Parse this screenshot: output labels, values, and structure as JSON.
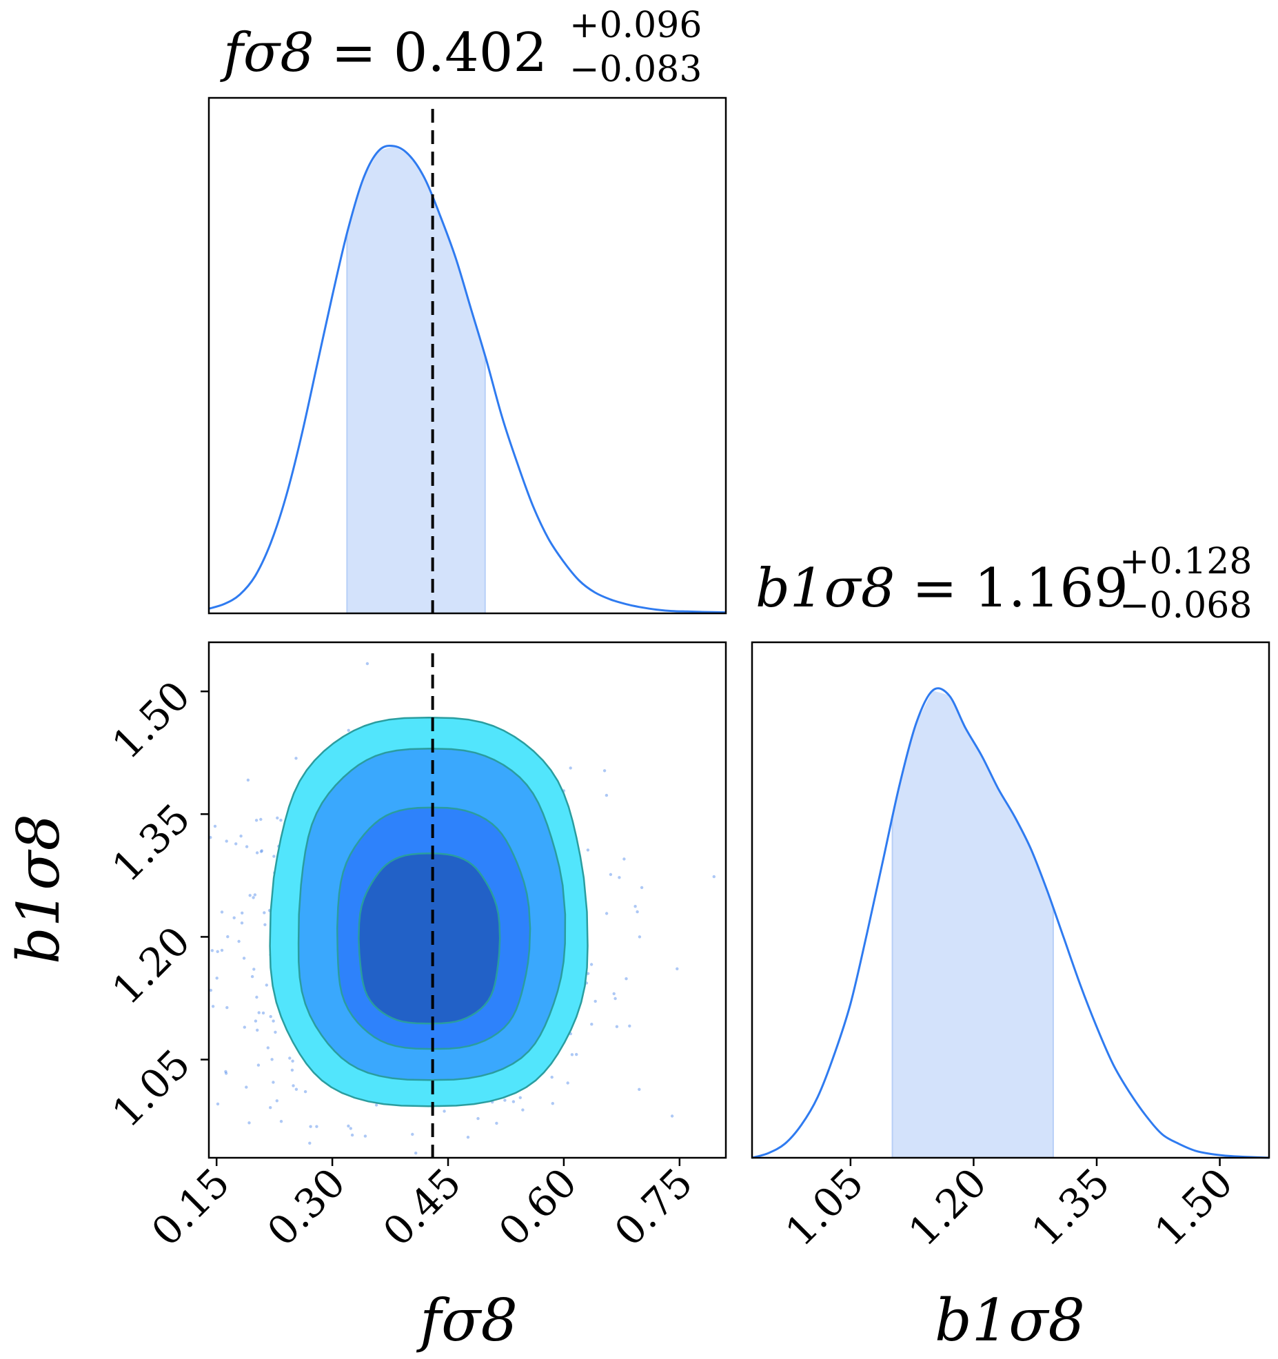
{
  "chart_data": {
    "type": "corner",
    "colors": {
      "line": "#2f7bf0",
      "band": "#d3e2fb",
      "band_edge": "#b7cff7",
      "truth": "#000000",
      "scatter": "#4a86e8",
      "contour_levels": [
        "#52e5fc",
        "#3aa8fd",
        "#2e82fb",
        "#2261c7"
      ],
      "contour_edge": "#2a9d9f"
    },
    "parameters": [
      {
        "key": "fsigma8",
        "label": "fσ8",
        "title_name": "fσ8",
        "title_value": "0.402",
        "title_plus": "+0.096",
        "title_minus": "−0.083",
        "median": 0.402,
        "err_plus": 0.096,
        "err_minus": 0.083,
        "truth": 0.43,
        "range": [
          0.14,
          0.81
        ],
        "ticks": [
          "0.15",
          "0.30",
          "0.45",
          "0.60",
          "0.75"
        ]
      },
      {
        "key": "b1sigma8",
        "label": "b1σ8",
        "title_name": "b1σ8",
        "title_value": "1.169",
        "title_plus": "+0.128",
        "title_minus": "−0.068",
        "median": 1.169,
        "err_plus": 0.128,
        "err_minus": 0.068,
        "range": [
          0.93,
          1.56
        ],
        "ticks": [
          "1.05",
          "1.20",
          "1.35",
          "1.50"
        ]
      }
    ],
    "marginals": [
      {
        "parameter": "fsigma8",
        "x": [
          0.14,
          0.16,
          0.18,
          0.2,
          0.22,
          0.24,
          0.26,
          0.28,
          0.3,
          0.32,
          0.34,
          0.36,
          0.38,
          0.4,
          0.42,
          0.44,
          0.46,
          0.48,
          0.5,
          0.52,
          0.54,
          0.56,
          0.58,
          0.6,
          0.62,
          0.64,
          0.66,
          0.68,
          0.7,
          0.72,
          0.74,
          0.76,
          0.78,
          0.81
        ],
        "density": [
          0.01,
          0.02,
          0.04,
          0.08,
          0.15,
          0.25,
          0.38,
          0.53,
          0.68,
          0.82,
          0.93,
          0.99,
          1.0,
          0.98,
          0.93,
          0.85,
          0.76,
          0.65,
          0.54,
          0.42,
          0.32,
          0.23,
          0.16,
          0.11,
          0.07,
          0.045,
          0.03,
          0.02,
          0.013,
          0.008,
          0.005,
          0.004,
          0.003,
          0.002
        ],
        "band": [
          0.319,
          0.498
        ]
      },
      {
        "parameter": "b1sigma8",
        "x": [
          0.93,
          0.95,
          0.97,
          0.99,
          1.01,
          1.03,
          1.05,
          1.07,
          1.09,
          1.11,
          1.13,
          1.15,
          1.17,
          1.19,
          1.21,
          1.23,
          1.25,
          1.27,
          1.29,
          1.31,
          1.33,
          1.35,
          1.37,
          1.39,
          1.41,
          1.43,
          1.45,
          1.47,
          1.49,
          1.51,
          1.53,
          1.56
        ],
        "density": [
          0.0,
          0.01,
          0.03,
          0.07,
          0.13,
          0.22,
          0.33,
          0.48,
          0.64,
          0.8,
          0.93,
          1.0,
          0.99,
          0.92,
          0.86,
          0.79,
          0.73,
          0.66,
          0.57,
          0.47,
          0.37,
          0.28,
          0.2,
          0.14,
          0.09,
          0.05,
          0.03,
          0.015,
          0.008,
          0.004,
          0.002,
          0.0
        ],
        "band": [
          1.101,
          1.297
        ]
      }
    ],
    "joint": {
      "x_parameter": "fsigma8",
      "y_parameter": "b1sigma8",
      "center": [
        0.4,
        1.19
      ],
      "levels": [
        {
          "bounds": [
            0.22,
            0.63,
            0.993,
            1.468
          ]
        },
        {
          "bounds": [
            0.255,
            0.6,
            1.025,
            1.43
          ]
        },
        {
          "bounds": [
            0.305,
            0.555,
            1.063,
            1.358
          ]
        },
        {
          "bounds": [
            0.334,
            0.517,
            1.094,
            1.302
          ]
        }
      ],
      "scatter_points": 950
    }
  }
}
